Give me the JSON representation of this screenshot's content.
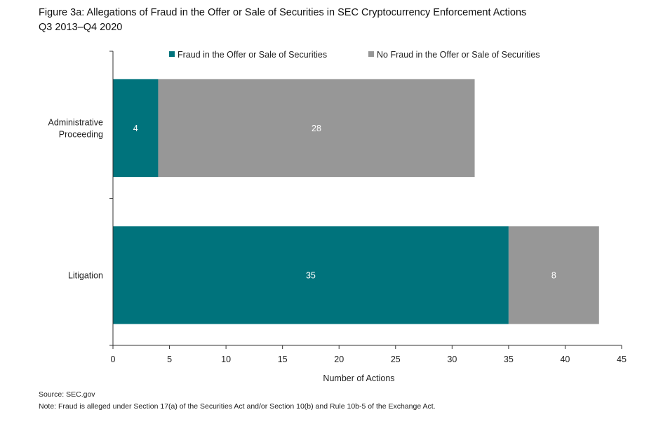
{
  "chart_data": {
    "type": "bar",
    "orientation": "horizontal",
    "stacked": true,
    "title": "Figure 3a: Allegations of Fraud in the Offer or Sale of Securities in SEC Cryptocurrency Enforcement Actions",
    "subtitle": "Q3 2013–Q4 2020",
    "xlabel": "Number of Actions",
    "ylabel": "",
    "categories": [
      "Administrative Proceeding",
      "Litigation"
    ],
    "series": [
      {
        "name": "Fraud in the Offer or Sale of Securities",
        "values": [
          4,
          35
        ],
        "color": "#00737c"
      },
      {
        "name": "No Fraud in the Offer or Sale of Securities",
        "values": [
          28,
          8
        ],
        "color": "#979797"
      }
    ],
    "xlim": [
      0,
      45
    ],
    "xticks": [
      0,
      5,
      10,
      15,
      20,
      25,
      30,
      35,
      40,
      45
    ],
    "grid": false,
    "legend_position": "top",
    "data_label_color": "#ffffff"
  },
  "footer": {
    "source": "Source: SEC.gov",
    "note": "Note: Fraud is alleged under Section 17(a) of the Securities Act and/or Section 10(b) and Rule 10b-5 of the Exchange Act."
  }
}
